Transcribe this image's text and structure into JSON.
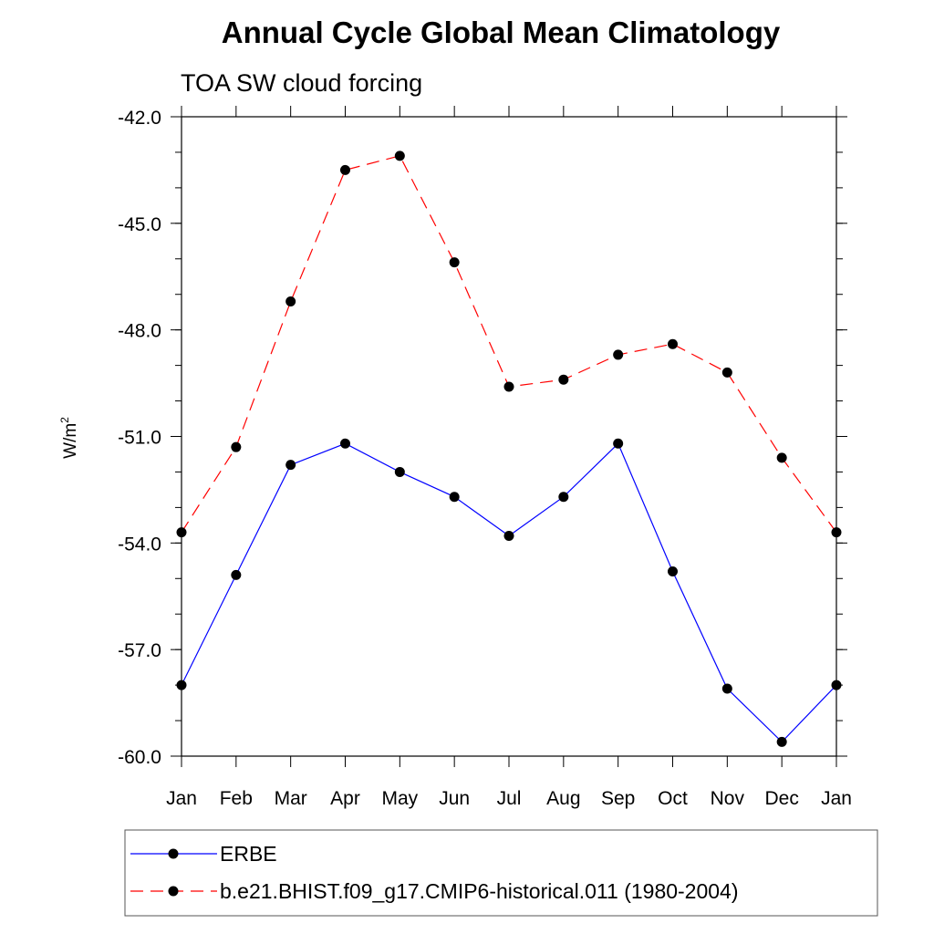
{
  "chart_data": {
    "type": "line",
    "title": "Annual Cycle Global Mean Climatology",
    "subtitle": "TOA SW cloud forcing",
    "ylabel_main": "W/m",
    "ylabel_sup": "2",
    "categories": [
      "Jan",
      "Feb",
      "Mar",
      "Apr",
      "May",
      "Jun",
      "Jul",
      "Aug",
      "Sep",
      "Oct",
      "Nov",
      "Dec",
      "Jan"
    ],
    "ylim": [
      -60.0,
      -42.0
    ],
    "yticks": [
      -42.0,
      -45.0,
      -48.0,
      -51.0,
      -54.0,
      -57.0,
      -60.0
    ],
    "ytick_labels": [
      "-42.0",
      "-45.0",
      "-48.0",
      "-51.0",
      "-54.0",
      "-57.0",
      "-60.0"
    ],
    "grid": false,
    "legend_position": "bottom",
    "series": [
      {
        "name": "ERBE",
        "color": "#0000ff",
        "dash": "solid",
        "marker": "circle",
        "values": [
          -58.0,
          -54.9,
          -51.8,
          -51.2,
          -52.0,
          -52.7,
          -53.8,
          -52.7,
          -51.2,
          -54.8,
          -58.1,
          -59.6,
          -58.0
        ]
      },
      {
        "name": "b.e21.BHIST.f09_g17.CMIP6-historical.011 (1980-2004)",
        "color": "#ff0000",
        "dash": "dashed",
        "marker": "circle",
        "values": [
          -53.7,
          -51.3,
          -47.2,
          -43.5,
          -43.1,
          -46.1,
          -49.6,
          -49.4,
          -48.7,
          -48.4,
          -49.2,
          -51.6,
          -53.7
        ]
      }
    ]
  }
}
